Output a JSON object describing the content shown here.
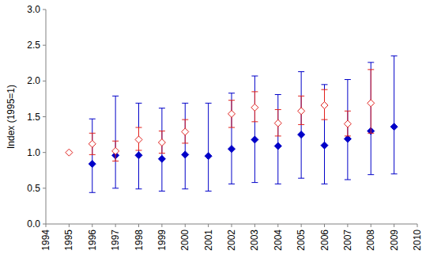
{
  "chart_data": {
    "type": "scatter",
    "y_label": "Index (1995=1)",
    "x": [
      1995,
      1996,
      1997,
      1998,
      1999,
      2000,
      2001,
      2002,
      2003,
      2004,
      2005,
      2006,
      2007,
      2008,
      2009
    ],
    "xlim": [
      1994,
      2010
    ],
    "xticks": [
      1994,
      1995,
      1996,
      1997,
      1998,
      1999,
      2000,
      2001,
      2002,
      2003,
      2004,
      2005,
      2006,
      2007,
      2008,
      2009,
      2010
    ],
    "ylim": [
      0,
      3
    ],
    "yticks": [
      {
        "value": 0,
        "label": "0.0"
      },
      {
        "value": 0.5,
        "label": "0.5"
      },
      {
        "value": 1,
        "label": "1.0"
      },
      {
        "value": 1.5,
        "label": "1.5"
      },
      {
        "value": 2,
        "label": "2.0"
      },
      {
        "value": 2.5,
        "label": "2.5"
      },
      {
        "value": 3,
        "label": "3.0"
      }
    ],
    "grid": false,
    "series": [
      {
        "color": "#0000c8",
        "marker": "diamond",
        "values": [
          null,
          0.84,
          0.96,
          0.96,
          0.91,
          0.97,
          0.95,
          1.05,
          1.18,
          1.09,
          1.25,
          1.1,
          1.19,
          1.3,
          1.36
        ],
        "lower": [
          null,
          0.44,
          0.5,
          0.49,
          0.46,
          0.49,
          0.46,
          0.56,
          0.58,
          0.56,
          0.64,
          0.56,
          0.62,
          0.69,
          0.7
        ],
        "upper": [
          null,
          1.47,
          1.79,
          1.69,
          1.62,
          1.69,
          1.69,
          1.83,
          2.07,
          1.81,
          2.13,
          1.95,
          2.02,
          2.26,
          2.35
        ]
      },
      {
        "color": "#e0201c",
        "marker": "diamond-open",
        "values": [
          1.0,
          1.12,
          1.02,
          1.18,
          1.14,
          1.29,
          null,
          1.54,
          1.63,
          1.41,
          1.58,
          1.66,
          1.4,
          1.69,
          null
        ],
        "lower": [
          null,
          0.97,
          0.88,
          1.03,
          0.99,
          1.13,
          null,
          1.35,
          1.43,
          1.23,
          1.39,
          1.46,
          1.23,
          1.27,
          null
        ],
        "upper": [
          null,
          1.27,
          1.16,
          1.35,
          1.3,
          1.46,
          null,
          1.73,
          1.85,
          1.6,
          1.79,
          1.88,
          1.58,
          2.16,
          null
        ]
      }
    ]
  }
}
